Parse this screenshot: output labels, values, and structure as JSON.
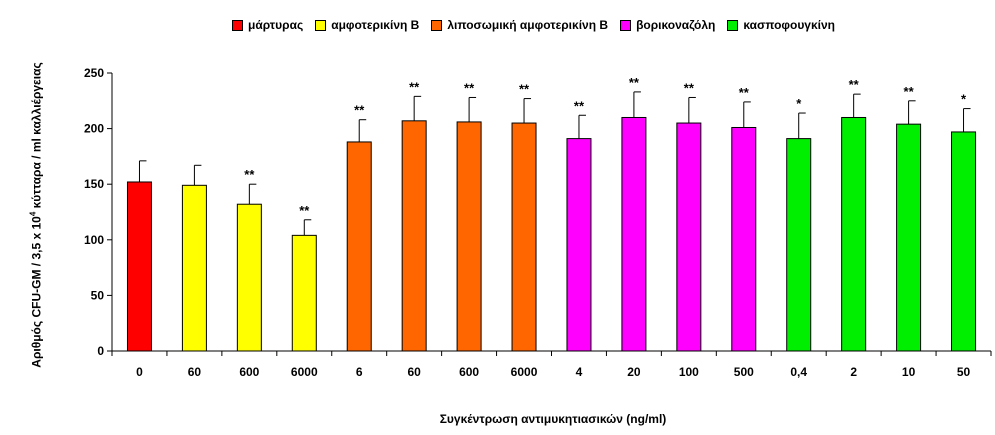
{
  "chart_data": {
    "type": "bar",
    "xlabel": "Συγκέντρωση αντιμυκητιασικών (ng/ml)",
    "ylabel": {
      "prefix": "Αριθμός CFU-GM / 3,5 x 10",
      "exponent": "4",
      "suffix": " κύτταρα / ml καλλιέργειας"
    },
    "ylim": [
      0,
      250
    ],
    "yticks": [
      0,
      50,
      100,
      150,
      200,
      250
    ],
    "legend_position": "top",
    "groups": [
      {
        "name": "μάρτυρας",
        "color": "#ff0000"
      },
      {
        "name": "αμφοτερικίνη Β",
        "color": "#ffff00"
      },
      {
        "name": "λιποσωμική αμφοτερικίνη Β",
        "color": "#ff6600"
      },
      {
        "name": "βορικοναζόλη",
        "color": "#ff00ff"
      },
      {
        "name": "κασποφουγκίνη",
        "color": "#00ee00"
      }
    ],
    "bars": [
      {
        "label": "0",
        "group": 0,
        "value": 152,
        "error": 19,
        "sig": ""
      },
      {
        "label": "60",
        "group": 1,
        "value": 149,
        "error": 18,
        "sig": ""
      },
      {
        "label": "600",
        "group": 1,
        "value": 132,
        "error": 18,
        "sig": "**"
      },
      {
        "label": "6000",
        "group": 1,
        "value": 104,
        "error": 14,
        "sig": "**"
      },
      {
        "label": "6",
        "group": 2,
        "value": 188,
        "error": 20,
        "sig": "**"
      },
      {
        "label": "60",
        "group": 2,
        "value": 207,
        "error": 22,
        "sig": "**"
      },
      {
        "label": "600",
        "group": 2,
        "value": 206,
        "error": 22,
        "sig": "**"
      },
      {
        "label": "6000",
        "group": 2,
        "value": 205,
        "error": 22,
        "sig": "**"
      },
      {
        "label": "4",
        "group": 3,
        "value": 191,
        "error": 21,
        "sig": "**"
      },
      {
        "label": "20",
        "group": 3,
        "value": 210,
        "error": 23,
        "sig": "**"
      },
      {
        "label": "100",
        "group": 3,
        "value": 205,
        "error": 23,
        "sig": "**"
      },
      {
        "label": "500",
        "group": 3,
        "value": 201,
        "error": 23,
        "sig": "**"
      },
      {
        "label": "0,4",
        "group": 4,
        "value": 191,
        "error": 23,
        "sig": "*"
      },
      {
        "label": "2",
        "group": 4,
        "value": 210,
        "error": 21,
        "sig": "**"
      },
      {
        "label": "10",
        "group": 4,
        "value": 204,
        "error": 21,
        "sig": "**"
      },
      {
        "label": "50",
        "group": 4,
        "value": 197,
        "error": 21,
        "sig": "*"
      }
    ]
  }
}
